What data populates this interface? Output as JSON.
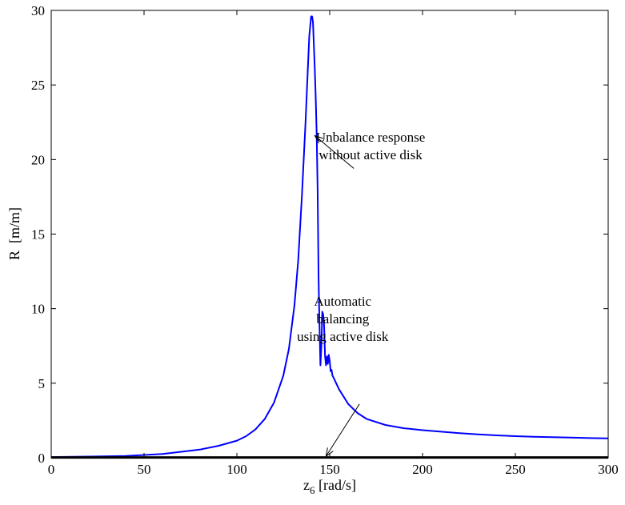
{
  "chart_data": {
    "type": "line",
    "title": "",
    "xlabel": {
      "main": "z",
      "sub": "6",
      "unit": " [rad/s]"
    },
    "ylabel": "R  [m/m]",
    "xlim": [
      0,
      300
    ],
    "ylim": [
      0,
      30
    ],
    "grid": false,
    "legend": "none",
    "xticks": [
      0,
      50,
      100,
      150,
      200,
      250,
      300
    ],
    "yticks": [
      0,
      5,
      10,
      15,
      20,
      25,
      30
    ],
    "xtick_labels": [
      "0",
      "50",
      "100",
      "150",
      "200",
      "250",
      "300"
    ],
    "ytick_labels": [
      "0",
      "5",
      "10",
      "15",
      "20",
      "25",
      "30"
    ],
    "series": [
      {
        "color": "#0000ff",
        "x": [
          0,
          20,
          40,
          60,
          80,
          90,
          100,
          105,
          110,
          115,
          120,
          125,
          128,
          131,
          133,
          135,
          137,
          138,
          139,
          140,
          140.5,
          141,
          142,
          142.5,
          143,
          143.5,
          144,
          144.5,
          145,
          145.5,
          146,
          146.5,
          147,
          147.5,
          148,
          148.5,
          149,
          149.5,
          150,
          150.5,
          151,
          151.5,
          152,
          155,
          160,
          165,
          170,
          180,
          190,
          200,
          210,
          220,
          230,
          240,
          250,
          260,
          270,
          280,
          290,
          300
        ],
        "y": [
          0.05,
          0.08,
          0.12,
          0.25,
          0.55,
          0.8,
          1.15,
          1.45,
          1.9,
          2.6,
          3.7,
          5.5,
          7.3,
          10.2,
          13.2,
          17.5,
          22.5,
          25.5,
          28.3,
          29.6,
          29.6,
          29.2,
          26,
          24,
          21.5,
          18,
          12,
          9,
          6.2,
          7.5,
          9.8,
          9.6,
          8.8,
          6.8,
          6.2,
          6.8,
          6.3,
          6.9,
          6.5,
          5.8,
          5.9,
          5.5,
          5.4,
          4.6,
          3.6,
          3.0,
          2.6,
          2.2,
          1.98,
          1.85,
          1.75,
          1.65,
          1.57,
          1.5,
          1.45,
          1.41,
          1.38,
          1.35,
          1.32,
          1.3
        ]
      },
      {
        "color": "#000000",
        "x": [
          0,
          300
        ],
        "y": [
          0.02,
          0.02
        ]
      }
    ],
    "annotations": [
      {
        "lines": [
          "Unbalance response",
          "without active disk"
        ],
        "text_at": [
          172,
          21.2
        ],
        "arrow_from": [
          163,
          19.4
        ],
        "arrow_to": [
          142,
          21.6
        ]
      },
      {
        "lines": [
          "Automatic",
          "balancing",
          "using active disk"
        ],
        "text_at": [
          157,
          10.2
        ],
        "arrow_from": [
          166,
          3.6
        ],
        "arrow_to": [
          148,
          0.1
        ]
      }
    ]
  }
}
